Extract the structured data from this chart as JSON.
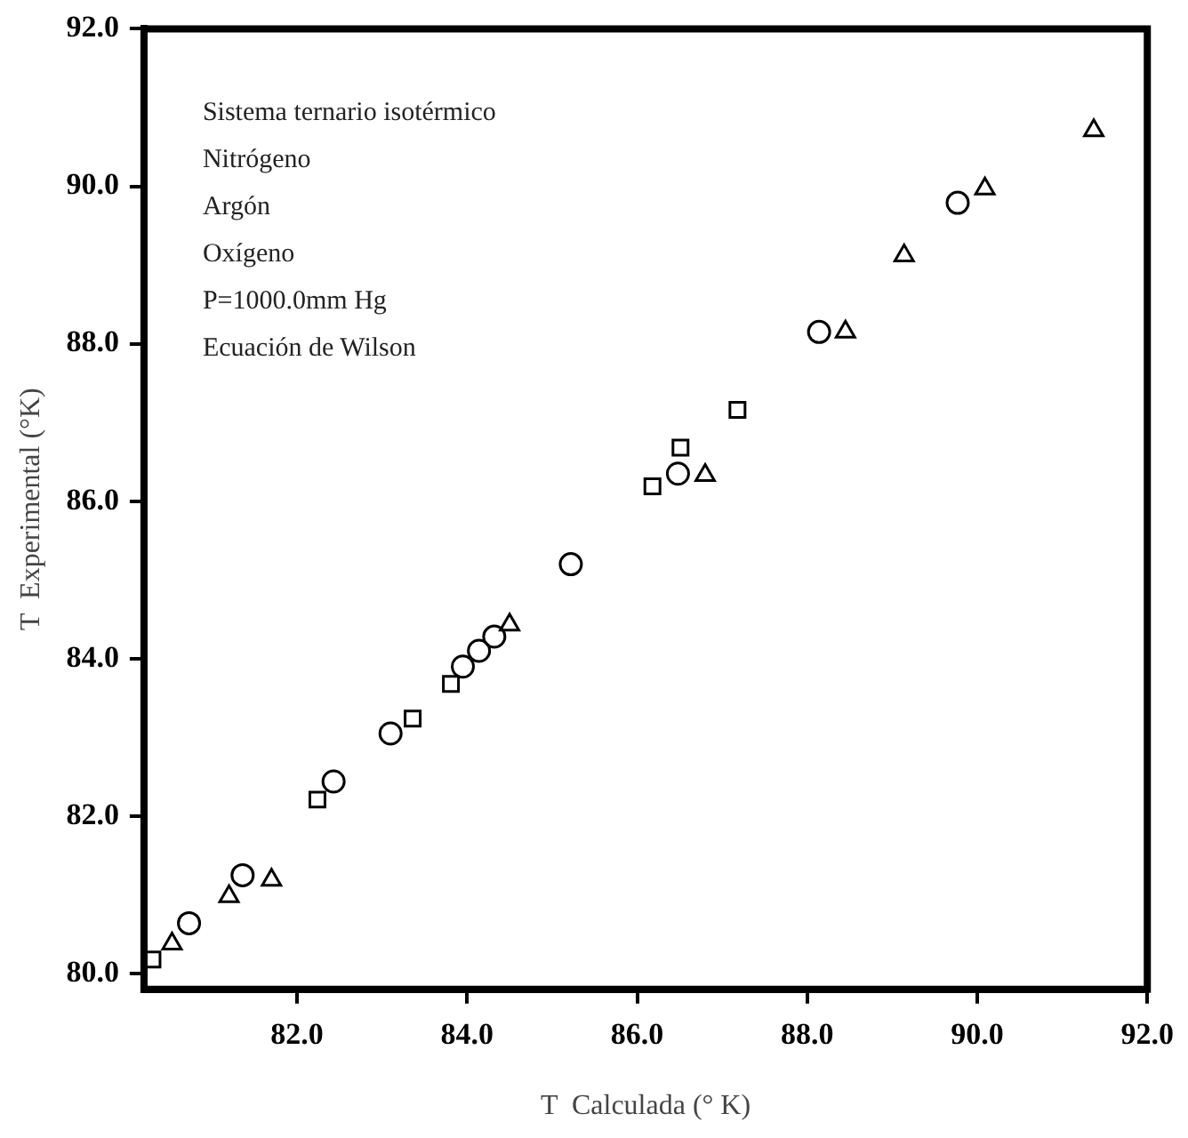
{
  "chart_data": {
    "type": "scatter",
    "xlabel": "T  Calculada (° K)",
    "ylabel": "T  Experimental (°K)",
    "annotations": [
      "Sistema ternario isotérmico",
      "Nitrógeno",
      "Argón",
      "Oxígeno",
      "P=1000.0mm Hg",
      "Ecuación de Wilson"
    ],
    "xlim": [
      80.2,
      92
    ],
    "xticks": [
      {
        "value": 82,
        "label": "82.0"
      },
      {
        "value": 84,
        "label": "84.0"
      },
      {
        "value": 86,
        "label": "86.0"
      },
      {
        "value": 88,
        "label": "88.0"
      },
      {
        "value": 90,
        "label": "90.0"
      },
      {
        "value": 92,
        "label": "92.0"
      }
    ],
    "ylim": [
      79.8,
      92
    ],
    "yticks": [
      {
        "value": 80,
        "label": "80.0"
      },
      {
        "value": 82,
        "label": "82.0"
      },
      {
        "value": 84,
        "label": "84.0"
      },
      {
        "value": 86,
        "label": "86.0"
      },
      {
        "value": 88,
        "label": "88.0"
      },
      {
        "value": 90,
        "label": "90.0"
      },
      {
        "value": 92,
        "label": "92.0"
      }
    ],
    "grid": false,
    "legend": false,
    "series": [
      {
        "color": "#000000",
        "marker": "circle",
        "x": [
          80.73,
          81.36,
          82.43,
          83.1,
          83.95,
          84.14,
          84.32,
          85.22,
          86.48,
          88.14,
          89.77
        ],
        "values": [
          80.64,
          81.25,
          82.44,
          83.05,
          83.9,
          84.1,
          84.28,
          85.2,
          86.35,
          88.15,
          89.79
        ]
      },
      {
        "color": "#000000",
        "marker": "square",
        "x": [
          80.3,
          82.24,
          83.36,
          83.81,
          86.18,
          86.51,
          87.18
        ],
        "values": [
          80.18,
          82.21,
          83.24,
          83.68,
          86.19,
          86.68,
          87.16
        ]
      },
      {
        "color": "#000000",
        "marker": "triangle",
        "x": [
          80.53,
          81.2,
          81.7,
          84.5,
          86.8,
          88.45,
          89.14,
          90.09,
          91.37
        ],
        "values": [
          80.38,
          80.98,
          81.19,
          84.43,
          86.33,
          88.15,
          89.12,
          89.97,
          90.71
        ]
      }
    ]
  }
}
